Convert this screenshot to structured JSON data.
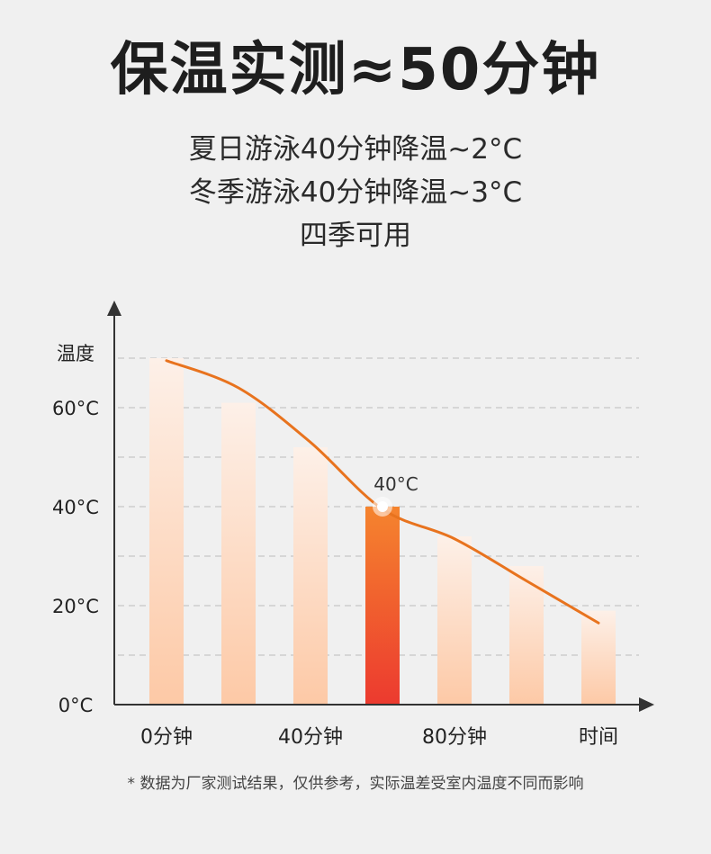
{
  "header": {
    "title": "保温实测≈50分钟",
    "lines": [
      "夏日游泳40分钟降温~2°C",
      "冬季游泳40分钟降温~3°C",
      "四季可用"
    ]
  },
  "footnote": "* 数据为厂家测试结果，仅供参考，实际温差受室内温度不同而影响",
  "colors": {
    "bar_top": "#fdf0e8",
    "bar_bottom": "#fdc9a6",
    "highlight_top": "#f5842e",
    "highlight_bottom": "#ec3a2f",
    "curve": "#e8731e",
    "axis": "#333333",
    "grid": "#bbbbbb"
  },
  "chart_data": {
    "type": "bar",
    "title": "",
    "ylabel": "温度",
    "xlabel": "时间",
    "ylim": [
      0,
      70
    ],
    "yticks": [
      {
        "value": 0,
        "label": "0°C"
      },
      {
        "value": 20,
        "label": "20°C"
      },
      {
        "value": 40,
        "label": "40°C"
      },
      {
        "value": 60,
        "label": "60°C"
      }
    ],
    "xtick_labels": [
      "0分钟",
      "40分钟",
      "80分钟"
    ],
    "values": [
      70,
      61,
      52,
      40,
      34,
      28,
      19
    ],
    "highlight_index": 3,
    "highlight_label": "40°C",
    "curve": [
      {
        "t": 0,
        "y": 69.5
      },
      {
        "t": 20,
        "y": 64
      },
      {
        "t": 40,
        "y": 53
      },
      {
        "t": 60,
        "y": 39.5
      },
      {
        "t": 80,
        "y": 33.5
      },
      {
        "t": 100,
        "y": 25
      },
      {
        "t": 120,
        "y": 16.5
      }
    ],
    "grid": true
  }
}
